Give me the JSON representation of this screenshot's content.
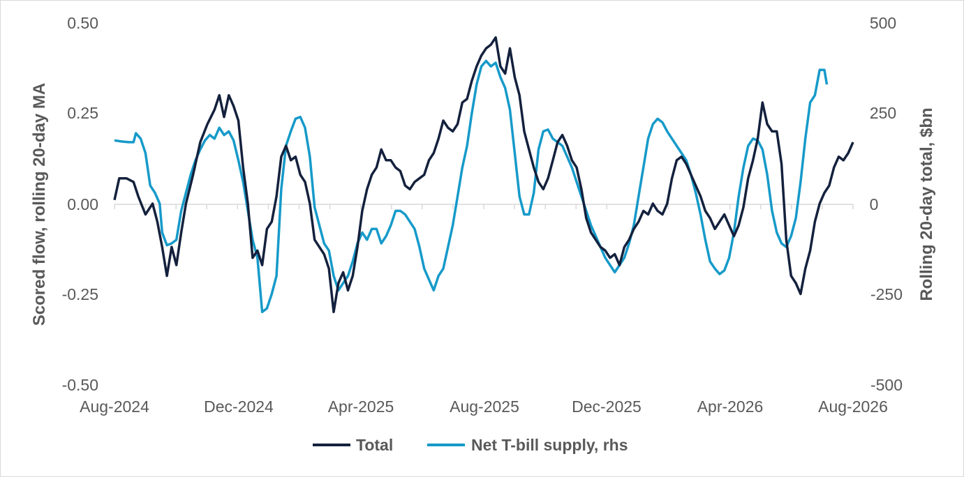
{
  "chart_data": {
    "type": "line",
    "title": "",
    "ylabel": "Scored flow, rolling 20-day MA",
    "y2label": "Rolling 20-day total, $bn",
    "ylim": [
      -0.5,
      0.5
    ],
    "y2lim": [
      -500,
      500
    ],
    "yticks": [
      "0.50",
      "0.25",
      "0.00",
      "-0.25",
      "-0.50"
    ],
    "y2ticks": [
      "500",
      "250",
      "0",
      "-250",
      "-500"
    ],
    "xticks": [
      "Aug-2024",
      "Dec-2024",
      "Apr-2025",
      "Aug-2025",
      "Dec-2025",
      "Apr-2026",
      "Aug-2026"
    ],
    "grid": false,
    "legend_position": "bottom",
    "x_unit": "months since Aug-2024",
    "series": [
      {
        "name": "Total",
        "axis": "left",
        "color": "#14213d",
        "points": [
          [
            0,
            0.01
          ],
          [
            0.2,
            0.07
          ],
          [
            0.5,
            0.07
          ],
          [
            0.8,
            0.06
          ],
          [
            1.0,
            0.02
          ],
          [
            1.3,
            -0.03
          ],
          [
            1.6,
            0.0
          ],
          [
            1.8,
            -0.05
          ],
          [
            2.0,
            -0.12
          ],
          [
            2.2,
            -0.2
          ],
          [
            2.4,
            -0.12
          ],
          [
            2.6,
            -0.17
          ],
          [
            2.8,
            -0.08
          ],
          [
            3.0,
            0.0
          ],
          [
            3.3,
            0.08
          ],
          [
            3.6,
            0.17
          ],
          [
            3.9,
            0.22
          ],
          [
            4.2,
            0.26
          ],
          [
            4.4,
            0.3
          ],
          [
            4.6,
            0.24
          ],
          [
            4.8,
            0.3
          ],
          [
            5.0,
            0.27
          ],
          [
            5.2,
            0.23
          ],
          [
            5.4,
            0.1
          ],
          [
            5.6,
            0.0
          ],
          [
            5.8,
            -0.15
          ],
          [
            6.0,
            -0.13
          ],
          [
            6.2,
            -0.17
          ],
          [
            6.4,
            -0.07
          ],
          [
            6.6,
            -0.05
          ],
          [
            6.8,
            0.02
          ],
          [
            7.0,
            0.13
          ],
          [
            7.2,
            0.16
          ],
          [
            7.4,
            0.12
          ],
          [
            7.6,
            0.13
          ],
          [
            7.8,
            0.08
          ],
          [
            8.0,
            0.06
          ],
          [
            8.2,
            0.0
          ],
          [
            8.4,
            -0.1
          ],
          [
            8.6,
            -0.12
          ],
          [
            8.8,
            -0.14
          ],
          [
            9.0,
            -0.18
          ],
          [
            9.2,
            -0.3
          ],
          [
            9.4,
            -0.22
          ],
          [
            9.6,
            -0.19
          ],
          [
            9.8,
            -0.24
          ],
          [
            10.0,
            -0.2
          ],
          [
            10.2,
            -0.12
          ],
          [
            10.4,
            -0.02
          ],
          [
            10.6,
            0.04
          ],
          [
            10.8,
            0.08
          ],
          [
            11.0,
            0.1
          ],
          [
            11.2,
            0.15
          ],
          [
            11.4,
            0.12
          ],
          [
            11.6,
            0.12
          ],
          [
            11.8,
            0.1
          ],
          [
            12.0,
            0.09
          ],
          [
            12.2,
            0.05
          ],
          [
            12.4,
            0.04
          ],
          [
            12.6,
            0.06
          ],
          [
            12.8,
            0.07
          ],
          [
            13.0,
            0.08
          ],
          [
            13.2,
            0.12
          ],
          [
            13.4,
            0.14
          ],
          [
            13.6,
            0.18
          ],
          [
            13.8,
            0.23
          ],
          [
            14.0,
            0.21
          ],
          [
            14.2,
            0.2
          ],
          [
            14.4,
            0.22
          ],
          [
            14.6,
            0.28
          ],
          [
            14.8,
            0.29
          ],
          [
            15.0,
            0.34
          ],
          [
            15.2,
            0.38
          ],
          [
            15.4,
            0.41
          ],
          [
            15.6,
            0.43
          ],
          [
            15.8,
            0.44
          ],
          [
            16.0,
            0.46
          ],
          [
            16.2,
            0.38
          ],
          [
            16.4,
            0.36
          ],
          [
            16.6,
            0.43
          ],
          [
            16.8,
            0.35
          ],
          [
            17.0,
            0.3
          ],
          [
            17.2,
            0.2
          ],
          [
            17.4,
            0.15
          ],
          [
            17.6,
            0.1
          ],
          [
            17.8,
            0.06
          ],
          [
            18.0,
            0.04
          ],
          [
            18.2,
            0.07
          ],
          [
            18.4,
            0.12
          ],
          [
            18.6,
            0.17
          ],
          [
            18.8,
            0.19
          ],
          [
            19.0,
            0.16
          ],
          [
            19.2,
            0.12
          ],
          [
            19.4,
            0.1
          ],
          [
            19.6,
            0.04
          ],
          [
            19.8,
            -0.04
          ],
          [
            20.0,
            -0.08
          ],
          [
            20.2,
            -0.1
          ],
          [
            20.4,
            -0.12
          ],
          [
            20.6,
            -0.13
          ],
          [
            20.8,
            -0.15
          ],
          [
            21.0,
            -0.14
          ],
          [
            21.2,
            -0.17
          ],
          [
            21.4,
            -0.12
          ],
          [
            21.6,
            -0.1
          ],
          [
            21.8,
            -0.07
          ],
          [
            22.0,
            -0.05
          ],
          [
            22.2,
            -0.02
          ],
          [
            22.4,
            -0.03
          ],
          [
            22.6,
            -0.0
          ],
          [
            22.8,
            -0.02
          ],
          [
            23.0,
            -0.03
          ],
          [
            23.2,
            0.0
          ],
          [
            23.4,
            0.07
          ],
          [
            23.6,
            0.12
          ],
          [
            23.8,
            0.13
          ],
          [
            24.0,
            0.11
          ],
          [
            24.2,
            0.08
          ],
          [
            24.4,
            0.05
          ],
          [
            24.6,
            0.02
          ],
          [
            24.8,
            -0.02
          ],
          [
            25.0,
            -0.04
          ],
          [
            25.2,
            -0.07
          ],
          [
            25.4,
            -0.05
          ],
          [
            25.6,
            -0.03
          ],
          [
            25.8,
            -0.06
          ],
          [
            26.0,
            -0.09
          ],
          [
            26.2,
            -0.06
          ],
          [
            26.4,
            -0.01
          ],
          [
            26.6,
            0.07
          ],
          [
            26.8,
            0.12
          ],
          [
            27.0,
            0.18
          ],
          [
            27.2,
            0.28
          ],
          [
            27.4,
            0.22
          ],
          [
            27.6,
            0.2
          ],
          [
            27.8,
            0.2
          ],
          [
            28.0,
            0.11
          ],
          [
            28.2,
            -0.1
          ],
          [
            28.4,
            -0.2
          ],
          [
            28.6,
            -0.22
          ],
          [
            28.8,
            -0.25
          ],
          [
            29.0,
            -0.18
          ],
          [
            29.2,
            -0.13
          ],
          [
            29.4,
            -0.05
          ],
          [
            29.6,
            0.0
          ],
          [
            29.8,
            0.03
          ],
          [
            30.0,
            0.05
          ],
          [
            30.2,
            0.1
          ],
          [
            30.4,
            0.13
          ],
          [
            30.6,
            0.12
          ],
          [
            30.8,
            0.14
          ],
          [
            31.0,
            0.17
          ]
        ]
      },
      {
        "name": "Net T-bill supply, rhs",
        "axis": "right",
        "color": "#169ac9",
        "points": [
          [
            0,
            175
          ],
          [
            0.3,
            172
          ],
          [
            0.6,
            170
          ],
          [
            0.8,
            170
          ],
          [
            0.9,
            195
          ],
          [
            1.1,
            180
          ],
          [
            1.3,
            140
          ],
          [
            1.5,
            50
          ],
          [
            1.7,
            30
          ],
          [
            1.9,
            0
          ],
          [
            2.0,
            -80
          ],
          [
            2.2,
            -115
          ],
          [
            2.4,
            -110
          ],
          [
            2.6,
            -100
          ],
          [
            2.8,
            -20
          ],
          [
            3.0,
            30
          ],
          [
            3.2,
            80
          ],
          [
            3.4,
            120
          ],
          [
            3.6,
            150
          ],
          [
            3.8,
            175
          ],
          [
            4.0,
            190
          ],
          [
            4.2,
            180
          ],
          [
            4.4,
            210
          ],
          [
            4.6,
            190
          ],
          [
            4.8,
            200
          ],
          [
            5.0,
            175
          ],
          [
            5.2,
            120
          ],
          [
            5.4,
            60
          ],
          [
            5.6,
            -20
          ],
          [
            5.8,
            -100
          ],
          [
            6.0,
            -150
          ],
          [
            6.2,
            -300
          ],
          [
            6.4,
            -290
          ],
          [
            6.6,
            -250
          ],
          [
            6.8,
            -200
          ],
          [
            7.0,
            40
          ],
          [
            7.2,
            160
          ],
          [
            7.4,
            200
          ],
          [
            7.6,
            235
          ],
          [
            7.8,
            240
          ],
          [
            8.0,
            210
          ],
          [
            8.2,
            130
          ],
          [
            8.4,
            -10
          ],
          [
            8.6,
            -60
          ],
          [
            8.8,
            -110
          ],
          [
            9.0,
            -130
          ],
          [
            9.2,
            -200
          ],
          [
            9.4,
            -240
          ],
          [
            9.6,
            -220
          ],
          [
            9.8,
            -200
          ],
          [
            10.0,
            -160
          ],
          [
            10.2,
            -110
          ],
          [
            10.4,
            -80
          ],
          [
            10.6,
            -100
          ],
          [
            10.8,
            -70
          ],
          [
            11.0,
            -70
          ],
          [
            11.2,
            -110
          ],
          [
            11.4,
            -90
          ],
          [
            11.6,
            -60
          ],
          [
            11.8,
            -20
          ],
          [
            12.0,
            -20
          ],
          [
            12.2,
            -30
          ],
          [
            12.4,
            -50
          ],
          [
            12.6,
            -70
          ],
          [
            12.8,
            -120
          ],
          [
            13.0,
            -180
          ],
          [
            13.2,
            -210
          ],
          [
            13.4,
            -240
          ],
          [
            13.6,
            -200
          ],
          [
            13.8,
            -180
          ],
          [
            14.0,
            -120
          ],
          [
            14.2,
            -60
          ],
          [
            14.4,
            20
          ],
          [
            14.6,
            100
          ],
          [
            14.8,
            160
          ],
          [
            15.0,
            250
          ],
          [
            15.2,
            330
          ],
          [
            15.4,
            380
          ],
          [
            15.6,
            395
          ],
          [
            15.8,
            380
          ],
          [
            16.0,
            390
          ],
          [
            16.2,
            350
          ],
          [
            16.4,
            320
          ],
          [
            16.6,
            260
          ],
          [
            16.8,
            140
          ],
          [
            17.0,
            20
          ],
          [
            17.2,
            -30
          ],
          [
            17.4,
            -30
          ],
          [
            17.6,
            30
          ],
          [
            17.8,
            150
          ],
          [
            18.0,
            200
          ],
          [
            18.2,
            205
          ],
          [
            18.4,
            180
          ],
          [
            18.6,
            170
          ],
          [
            18.8,
            160
          ],
          [
            19.0,
            130
          ],
          [
            19.2,
            100
          ],
          [
            19.4,
            60
          ],
          [
            19.6,
            20
          ],
          [
            19.8,
            -20
          ],
          [
            20.0,
            -60
          ],
          [
            20.2,
            -90
          ],
          [
            20.4,
            -120
          ],
          [
            20.6,
            -150
          ],
          [
            20.8,
            -170
          ],
          [
            21.0,
            -190
          ],
          [
            21.2,
            -170
          ],
          [
            21.4,
            -150
          ],
          [
            21.6,
            -110
          ],
          [
            21.8,
            -60
          ],
          [
            22.0,
            20
          ],
          [
            22.2,
            100
          ],
          [
            22.4,
            180
          ],
          [
            22.6,
            220
          ],
          [
            22.8,
            235
          ],
          [
            23.0,
            225
          ],
          [
            23.2,
            200
          ],
          [
            23.4,
            180
          ],
          [
            23.6,
            160
          ],
          [
            23.8,
            140
          ],
          [
            24.0,
            120
          ],
          [
            24.2,
            80
          ],
          [
            24.4,
            30
          ],
          [
            24.6,
            -30
          ],
          [
            24.8,
            -100
          ],
          [
            25.0,
            -160
          ],
          [
            25.2,
            -180
          ],
          [
            25.4,
            -195
          ],
          [
            25.6,
            -185
          ],
          [
            25.8,
            -150
          ],
          [
            26.0,
            -80
          ],
          [
            26.2,
            20
          ],
          [
            26.4,
            100
          ],
          [
            26.6,
            160
          ],
          [
            26.8,
            180
          ],
          [
            27.0,
            175
          ],
          [
            27.2,
            150
          ],
          [
            27.4,
            80
          ],
          [
            27.6,
            -20
          ],
          [
            27.8,
            -80
          ],
          [
            28.0,
            -110
          ],
          [
            28.2,
            -120
          ],
          [
            28.4,
            -90
          ],
          [
            28.6,
            -40
          ],
          [
            28.8,
            60
          ],
          [
            29.0,
            180
          ],
          [
            29.2,
            280
          ],
          [
            29.4,
            300
          ],
          [
            29.6,
            370
          ],
          [
            29.8,
            370
          ],
          [
            29.9,
            330
          ]
        ]
      }
    ]
  },
  "colors": {
    "total": "#14213d",
    "tbill": "#169ac9",
    "axis_text": "#595959",
    "zero_line": "#d9d9d9"
  }
}
